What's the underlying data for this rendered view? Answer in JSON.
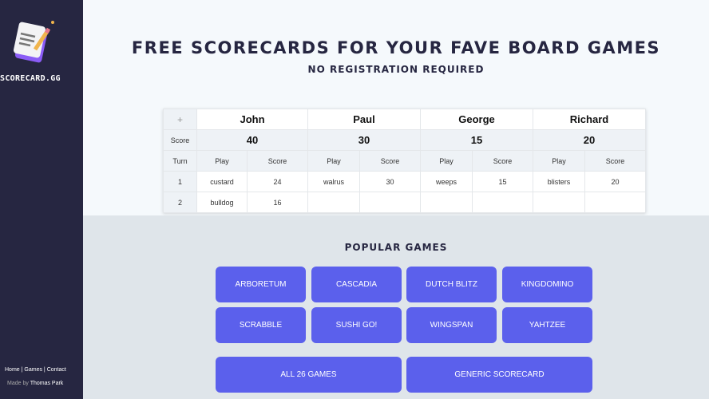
{
  "sidebar": {
    "brand": "SCORECARD.GG",
    "links": [
      "Home",
      "Games",
      "Contact"
    ],
    "made_by": "Made by",
    "author": "Thomas Park"
  },
  "header": {
    "title": "Free scorecards for your fave board games",
    "subtitle": "No registration required"
  },
  "scorecard": {
    "add_label": "+",
    "score_label": "Score",
    "turn_label": "Turn",
    "play_label": "Play",
    "score_col_label": "Score",
    "players": [
      {
        "name": "John",
        "total": "40"
      },
      {
        "name": "Paul",
        "total": "30"
      },
      {
        "name": "George",
        "total": "15"
      },
      {
        "name": "Richard",
        "total": "20"
      }
    ],
    "turns": [
      {
        "turn": "1",
        "cells": [
          [
            "custard",
            "24"
          ],
          [
            "walrus",
            "30"
          ],
          [
            "weeps",
            "15"
          ],
          [
            "blisters",
            "20"
          ]
        ]
      },
      {
        "turn": "2",
        "cells": [
          [
            "bulldog",
            "16"
          ],
          [
            "",
            ""
          ],
          [
            "",
            ""
          ],
          [
            "",
            ""
          ]
        ]
      }
    ]
  },
  "popular": {
    "title": "Popular games",
    "games": [
      "Arboretum",
      "Cascadia",
      "Dutch Blitz",
      "Kingdomino",
      "Scrabble",
      "Sushi Go!",
      "Wingspan",
      "Yahtzee"
    ],
    "all_label": "All 26 games",
    "generic_label": "Generic scorecard"
  },
  "colors": {
    "sidebar": "#262641",
    "button": "#5b60ec",
    "panel": "#dfe5ea"
  }
}
